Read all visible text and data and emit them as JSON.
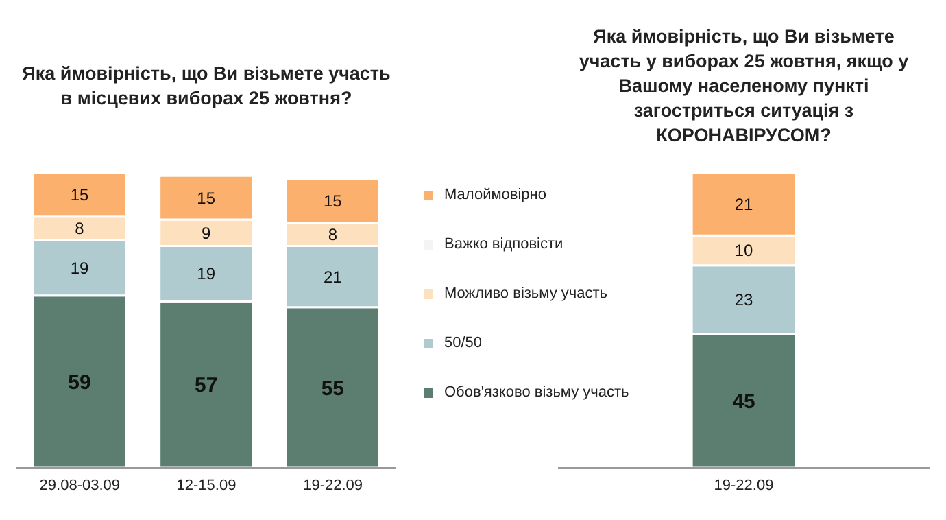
{
  "chart_data": [
    {
      "type": "bar",
      "stacked": true,
      "title": "Яка ймовірність, що Ви візьмете участь в місцевих виборах 25 жовтня?",
      "categories": [
        "29.08-03.09",
        "12-15.09",
        "19-22.09"
      ],
      "data_labels": true,
      "legend": "right",
      "series": [
        {
          "name": "Обов'язково візьму участь",
          "color": "#5b7e70",
          "values": [
            59,
            57,
            55
          ]
        },
        {
          "name": "50/50",
          "color": "#b0cbd0",
          "values": [
            19,
            19,
            21
          ]
        },
        {
          "name": "Можливо візьму участь",
          "color": "#fde1bf",
          "values": [
            8,
            9,
            8
          ]
        },
        {
          "name": "Важко відповісти",
          "color": "#f4f4f4",
          "values": [
            null,
            null,
            null
          ]
        },
        {
          "name": "Малоймовірно",
          "color": "#fbb06e",
          "values": [
            15,
            15,
            15
          ]
        }
      ]
    },
    {
      "type": "bar",
      "stacked": true,
      "title": "Яка ймовірність, що Ви візьмете участь у виборах 25 жовтня, якщо у Вашому населеному пункті загостриться ситуація з КОРОНАВІРУСОМ?",
      "categories": [
        "19-22.09"
      ],
      "data_labels": true,
      "series": [
        {
          "color": "#5b7e70",
          "values": [
            45
          ]
        },
        {
          "color": "#b0cbd0",
          "values": [
            23
          ]
        },
        {
          "color": "#fde1bf",
          "values": [
            10
          ]
        },
        {
          "color": "#f4f4f4",
          "values": [
            null
          ]
        },
        {
          "color": "#fbb06e",
          "values": [
            21
          ]
        }
      ]
    }
  ]
}
